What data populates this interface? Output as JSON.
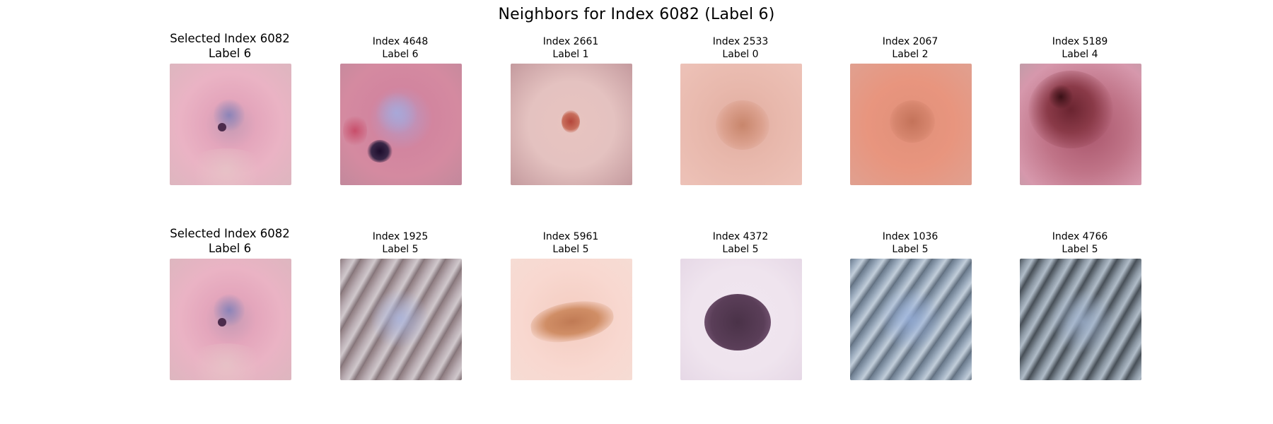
{
  "figure": {
    "title": "Neighbors for Index 6082 (Label 6)"
  },
  "rows": [
    {
      "selected": {
        "title": "Selected Index 6082",
        "label": "Label 6",
        "image": "skin-lesion-pink-small-dark-center"
      },
      "neighbors": [
        {
          "title": "Index 4648",
          "label": "Label 6",
          "image": "skin-lesion-pink-purple-dark-spot"
        },
        {
          "title": "Index 2661",
          "label": "Label 1",
          "image": "skin-lesion-small-red-dot"
        },
        {
          "title": "Index 2533",
          "label": "Label 0",
          "image": "skin-lesion-faint-brown"
        },
        {
          "title": "Index 2067",
          "label": "Label 2",
          "image": "skin-lesion-orange-light-brown"
        },
        {
          "title": "Index 5189",
          "label": "Label 4",
          "image": "skin-lesion-large-dark-red-brown"
        }
      ]
    },
    {
      "selected": {
        "title": "Selected Index 6082",
        "label": "Label 6",
        "image": "skin-lesion-pink-small-dark-center"
      },
      "neighbors": [
        {
          "title": "Index 1925",
          "label": "Label 5",
          "image": "skin-lesion-grey-blue-hairy"
        },
        {
          "title": "Index 5961",
          "label": "Label 5",
          "image": "skin-lesion-brown-oval"
        },
        {
          "title": "Index 4372",
          "label": "Label 5",
          "image": "skin-lesion-dark-purple-round"
        },
        {
          "title": "Index 1036",
          "label": "Label 5",
          "image": "skin-lesion-blue-grey-hairy"
        },
        {
          "title": "Index 4766",
          "label": "Label 5",
          "image": "skin-lesion-dark-grey-hairy"
        }
      ]
    }
  ]
}
